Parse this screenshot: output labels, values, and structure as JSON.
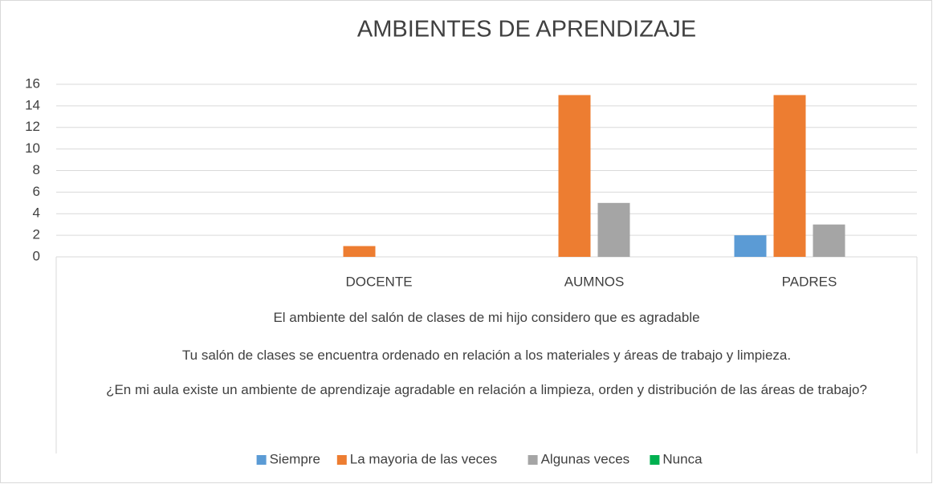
{
  "chart_data": {
    "type": "bar",
    "title": "AMBIENTES DE APRENDIZAJE",
    "categories": [
      null,
      "DOCENTE",
      "AUMNOS",
      "PADRES"
    ],
    "category_groups": [
      "El ambiente del salón de clases de mi hijo considero que es agradable",
      "Tu salón de clases se encuentra ordenado en relación a los materiales y áreas de trabajo y limpieza.",
      "¿En mi aula existe un ambiente de aprendizaje agradable en relación a limpieza, orden y distribución de las áreas de trabajo?"
    ],
    "series": [
      {
        "name": "Siempre",
        "color": "#5b9bd5",
        "values": [
          null,
          0,
          0,
          2
        ]
      },
      {
        "name": "La mayoria de las veces",
        "color": "#ed7d31",
        "values": [
          null,
          1,
          15,
          15
        ]
      },
      {
        "name": "Algunas veces",
        "color": "#a5a5a5",
        "values": [
          null,
          0,
          5,
          3
        ]
      },
      {
        "name": "Nunca",
        "color": "#00b050",
        "values": [
          null,
          0,
          0,
          0
        ]
      }
    ],
    "ylim": [
      0,
      16
    ],
    "yticks": [
      0,
      2,
      4,
      6,
      8,
      10,
      12,
      14,
      16
    ],
    "grid": true,
    "legend": "bottom"
  }
}
